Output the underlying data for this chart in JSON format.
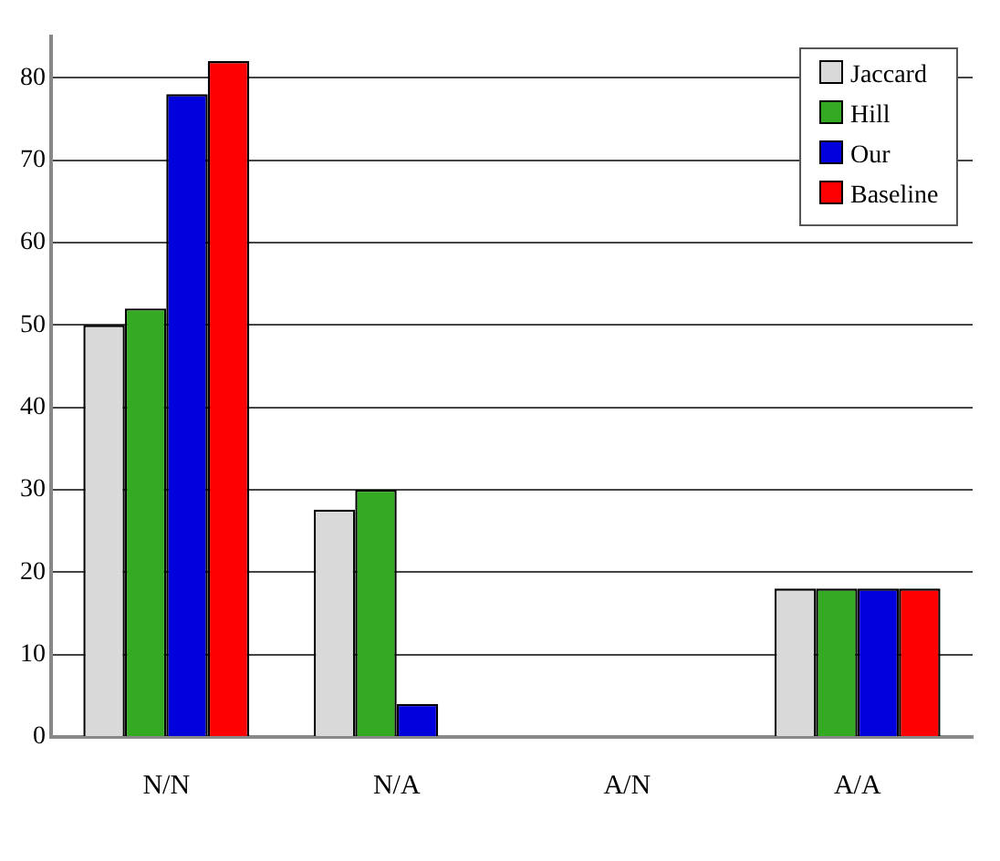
{
  "chart_data": {
    "type": "bar",
    "categories": [
      "N/N",
      "N/A",
      "A/N",
      "A/A"
    ],
    "series": [
      {
        "name": "Jaccard",
        "color": "#d9d9d9",
        "values": [
          50,
          27.6,
          0,
          18
        ]
      },
      {
        "name": "Hill",
        "color": "#33aa22",
        "values": [
          52,
          30,
          0,
          18
        ]
      },
      {
        "name": "Our",
        "color": "#0000dd",
        "values": [
          78,
          4,
          0,
          18
        ]
      },
      {
        "name": "Baseline",
        "color": "#ff0000",
        "values": [
          82,
          0,
          0,
          18
        ]
      }
    ],
    "ylim": [
      0,
      85
    ],
    "yticks": [
      0,
      10,
      20,
      30,
      40,
      50,
      60,
      70,
      80
    ],
    "grid": "y",
    "legend": "top right"
  }
}
